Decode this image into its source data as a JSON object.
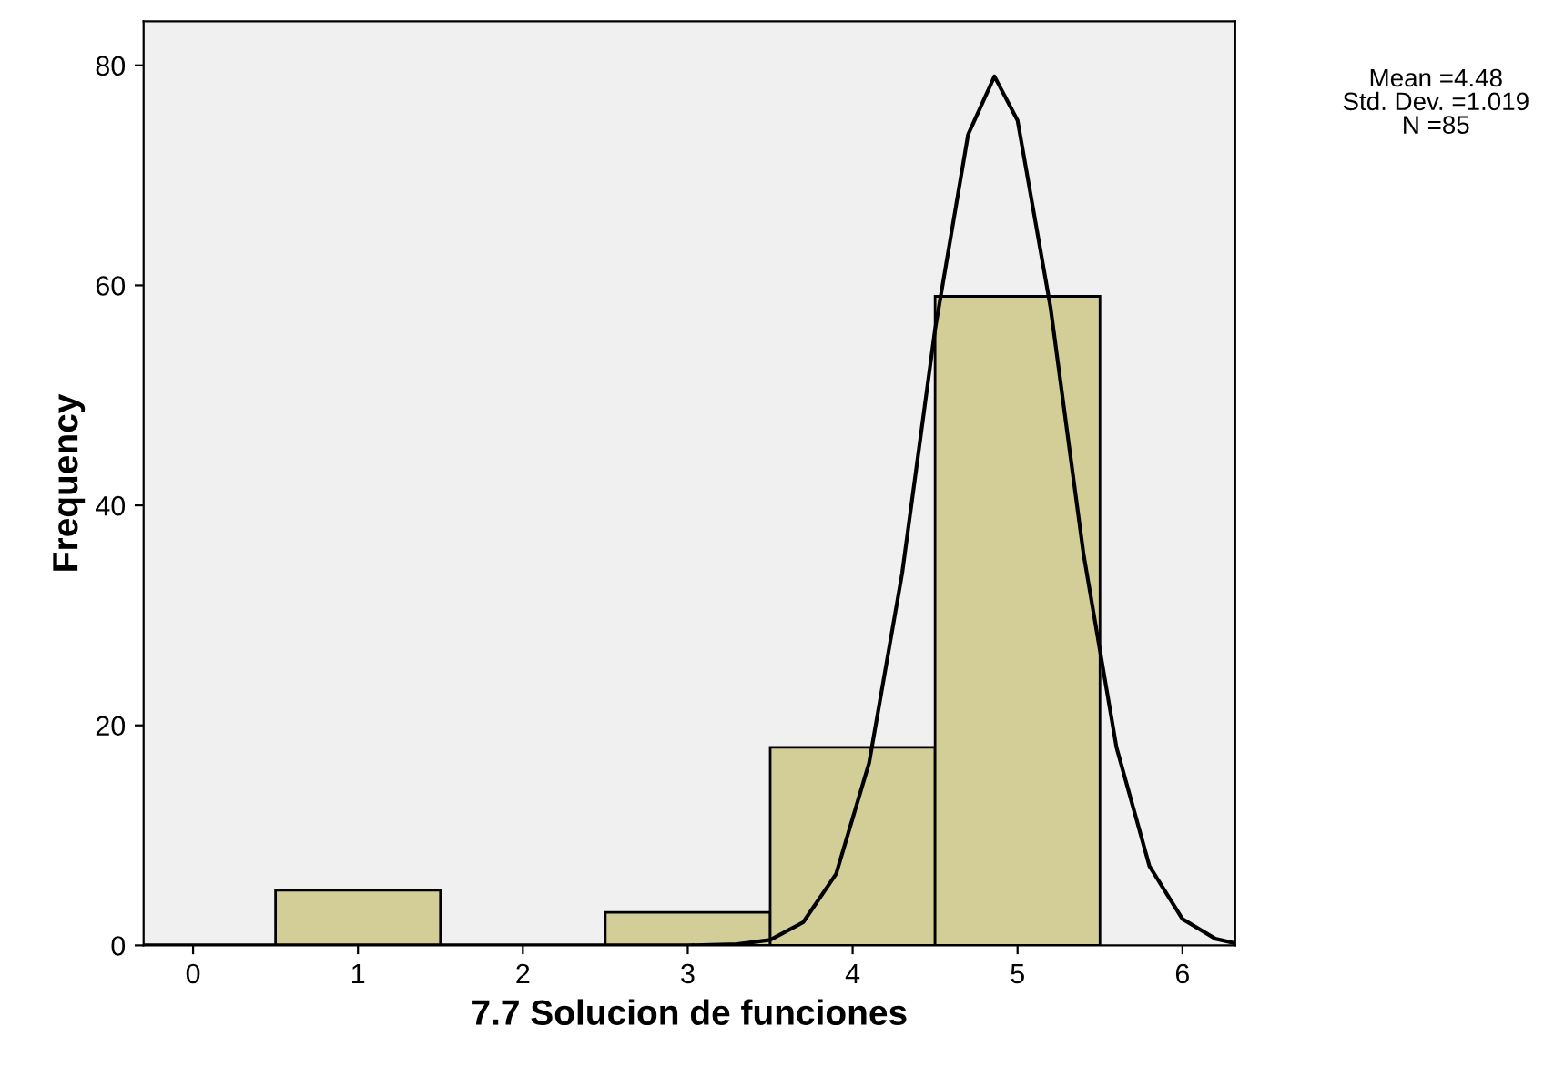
{
  "chart_data": {
    "type": "histogram",
    "xlabel": "7.7 Solucion de funciones",
    "ylabel": "Frequency",
    "bins": [
      0.5,
      1.5,
      2.5,
      3.5,
      4.5,
      5.5
    ],
    "values": [
      5,
      0,
      3,
      18,
      59
    ],
    "color": "#d3ce97",
    "series": [
      {
        "type": "line",
        "color": "#000000",
        "x": [
          -0.3,
          0,
          1,
          2,
          3,
          3.3,
          3.5,
          3.7,
          3.9,
          4.1,
          4.3,
          4.5,
          4.7,
          4.86,
          5.0,
          5.2,
          5.4,
          5.6,
          5.8,
          6.0,
          6.2,
          6.32
        ],
        "values": [
          0,
          0,
          0,
          0,
          0,
          0.1,
          0.5,
          2.1,
          6.5,
          16.6,
          33.8,
          56,
          73.7,
          79,
          75,
          58,
          35.6,
          18,
          7.2,
          2.4,
          0.6,
          0.2
        ]
      }
    ],
    "xlim": [
      -0.3,
      6.32
    ],
    "ylim": [
      0,
      84
    ],
    "xticks": [
      0,
      1,
      2,
      3,
      4,
      5,
      6
    ],
    "yticks": [
      0,
      20,
      40,
      60,
      80
    ],
    "grid": false,
    "annotations": [
      "Mean =4.48",
      "Std. Dev. =1.019",
      "N =85"
    ]
  }
}
